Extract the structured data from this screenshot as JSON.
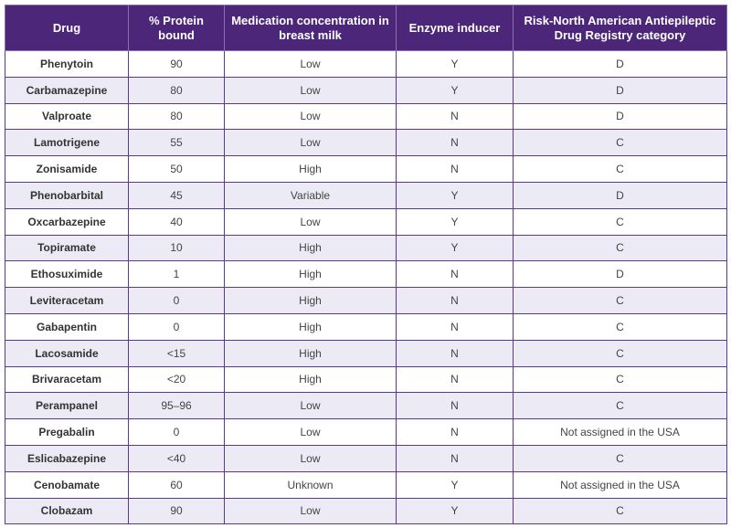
{
  "table": {
    "header": [
      "Drug",
      "% Protein bound",
      "Medication concentration in breast milk",
      "Enzyme inducer",
      "Risk-North American Antiepileptic Drug Registry category"
    ],
    "rows": [
      [
        "Phenytoin",
        "90",
        "Low",
        "Y",
        "D"
      ],
      [
        "Carbamazepine",
        "80",
        "Low",
        "Y",
        "D"
      ],
      [
        "Valproate",
        "80",
        "Low",
        "N",
        "D"
      ],
      [
        "Lamotrigene",
        "55",
        "Low",
        "N",
        "C"
      ],
      [
        "Zonisamide",
        "50",
        "High",
        "N",
        "C"
      ],
      [
        "Phenobarbital",
        "45",
        "Variable",
        "Y",
        "D"
      ],
      [
        "Oxcarbazepine",
        "40",
        "Low",
        "Y",
        "C"
      ],
      [
        "Topiramate",
        "10",
        "High",
        "Y",
        "C"
      ],
      [
        "Ethosuximide",
        "1",
        "High",
        "N",
        "D"
      ],
      [
        "Leviteracetam",
        "0",
        "High",
        "N",
        "C"
      ],
      [
        "Gabapentin",
        "0",
        "High",
        "N",
        "C"
      ],
      [
        "Lacosamide",
        "<15",
        "High",
        "N",
        "C"
      ],
      [
        "Brivaracetam",
        "<20",
        "High",
        "N",
        "C"
      ],
      [
        "Perampanel",
        "95–96",
        "Low",
        "N",
        "C"
      ],
      [
        "Pregabalin",
        "0",
        "Low",
        "N",
        "Not assigned in the USA"
      ],
      [
        "Eslicabazepine",
        "<40",
        "Low",
        "N",
        "C"
      ],
      [
        "Cenobamate",
        "60",
        "Unknown",
        "Y",
        "Not assigned in the USA"
      ],
      [
        "Clobazam",
        "90",
        "Low",
        "Y",
        "C"
      ]
    ]
  }
}
